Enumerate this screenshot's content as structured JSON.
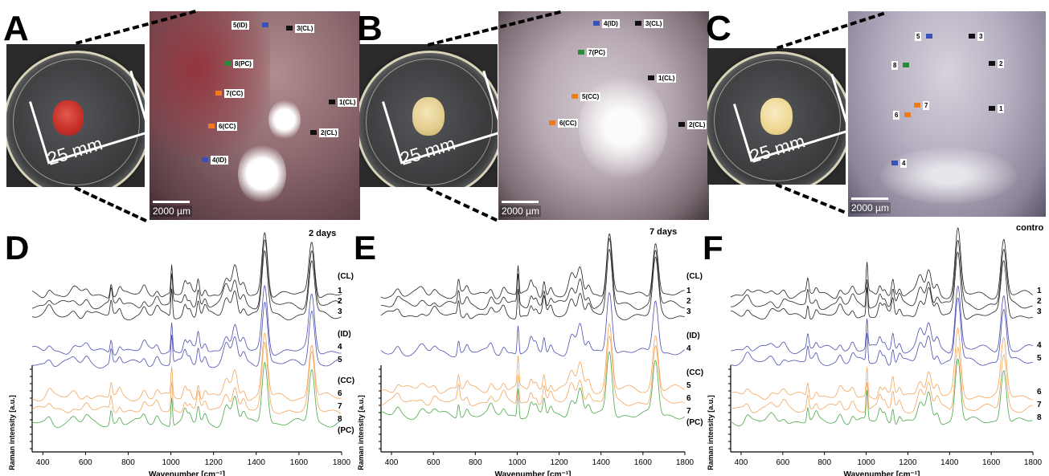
{
  "panels": {
    "A": {
      "letter": "A",
      "ruler": "25 mm",
      "scale": "2000 µm",
      "markers": [
        {
          "label": "5(ID)",
          "color": "#3b4fb8"
        },
        {
          "label": "3(CL)",
          "color": "#111111"
        },
        {
          "label": "8(PC)",
          "color": "#2a8a3a"
        },
        {
          "label": "7(CC)",
          "color": "#f07a1e"
        },
        {
          "label": "1(CL)",
          "color": "#111111"
        },
        {
          "label": "6(CC)",
          "color": "#f07a1e"
        },
        {
          "label": "2(CL)",
          "color": "#111111"
        },
        {
          "label": "4(ID)",
          "color": "#3b4fb8"
        }
      ]
    },
    "B": {
      "letter": "B",
      "ruler": "25 mm",
      "scale": "2000 µm",
      "markers": [
        {
          "label": "4(ID)",
          "color": "#3b4fb8"
        },
        {
          "label": "3(CL)",
          "color": "#111111"
        },
        {
          "label": "7(PC)",
          "color": "#2a8a3a"
        },
        {
          "label": "1(CL)",
          "color": "#111111"
        },
        {
          "label": "5(CC)",
          "color": "#f07a1e"
        },
        {
          "label": "6(CC)",
          "color": "#f07a1e"
        },
        {
          "label": "2(CL)",
          "color": "#111111"
        }
      ]
    },
    "C": {
      "letter": "C",
      "ruler": "25 mm",
      "scale": "2000 µm",
      "markers": [
        {
          "label": "5",
          "color": "#3b4fb8"
        },
        {
          "label": "3",
          "color": "#111111"
        },
        {
          "label": "8",
          "color": "#2a8a3a"
        },
        {
          "label": "2",
          "color": "#111111"
        },
        {
          "label": "7",
          "color": "#f07a1e"
        },
        {
          "label": "6",
          "color": "#f07a1e"
        },
        {
          "label": "1",
          "color": "#111111"
        },
        {
          "label": "4",
          "color": "#3b4fb8"
        }
      ]
    }
  },
  "chart_data": [
    {
      "type": "line",
      "letter": "D",
      "title": "2 days",
      "xlabel": "Wavenumber [cm⁻¹]",
      "ylabel": "Raman intensity [a.u.]",
      "xlim": [
        350,
        1800
      ],
      "xticks": [
        "400",
        "600",
        "800",
        "1000",
        "1200",
        "1400",
        "1600",
        "1800"
      ],
      "groups": [
        {
          "name": "(CL)",
          "color": "#222222",
          "labels": [
            "1",
            "2",
            "3"
          ]
        },
        {
          "name": "(ID)",
          "color": "#4a4fb0",
          "labels": [
            "4",
            "5"
          ]
        },
        {
          "name": "(CC)",
          "color": "#f3a55a",
          "labels": [
            "6",
            "7"
          ]
        },
        {
          "name": "(PC)",
          "color": "#4aa64a",
          "labels": [
            "8"
          ]
        }
      ],
      "label_order": [
        "(CL)",
        "1",
        "2",
        "3",
        "(ID)",
        "4",
        "5",
        "(CC)",
        "6",
        "7",
        "8",
        "(PC)"
      ]
    },
    {
      "type": "line",
      "letter": "E",
      "title": "7 days",
      "xlabel": "Wavenumber [cm⁻¹]",
      "ylabel": "Raman intensity [a.u.]",
      "xlim": [
        350,
        1800
      ],
      "xticks": [
        "400",
        "600",
        "800",
        "1000",
        "1200",
        "1400",
        "1600",
        "1800"
      ],
      "groups": [
        {
          "name": "(CL)",
          "color": "#222222",
          "labels": [
            "1",
            "2",
            "3"
          ]
        },
        {
          "name": "(ID)",
          "color": "#4a4fb0",
          "labels": [
            "4"
          ]
        },
        {
          "name": "(CC)",
          "color": "#f3a55a",
          "labels": [
            "5",
            "6"
          ]
        },
        {
          "name": "(PC)",
          "color": "#4aa64a",
          "labels": [
            "7"
          ]
        }
      ],
      "label_order": [
        "(CL)",
        "1",
        "2",
        "3",
        "(ID)",
        "4",
        "(CC)",
        "5",
        "6",
        "7",
        "(PC)"
      ]
    },
    {
      "type": "line",
      "letter": "F",
      "title": "contro",
      "xlabel": "Wavenumber [cm⁻¹]",
      "ylabel": "Raman intensity [a.u.]",
      "xlim": [
        350,
        1800
      ],
      "xticks": [
        "400",
        "600",
        "800",
        "1000",
        "1200",
        "1400",
        "1600",
        "1800"
      ],
      "groups": [
        {
          "name": "",
          "color": "#222222",
          "labels": [
            "1",
            "2",
            "3"
          ]
        },
        {
          "name": "",
          "color": "#4a4fb0",
          "labels": [
            "4",
            "5"
          ]
        },
        {
          "name": "",
          "color": "#f3a55a",
          "labels": [
            "6",
            "7"
          ]
        },
        {
          "name": "",
          "color": "#4aa64a",
          "labels": [
            "8"
          ]
        }
      ],
      "label_order": [
        "1",
        "2",
        "3",
        "4",
        "5",
        "6",
        "7",
        "8"
      ]
    }
  ]
}
